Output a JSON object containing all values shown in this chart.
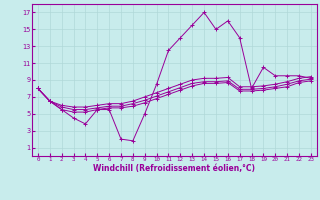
{
  "xlabel": "Windchill (Refroidissement éolien,°C)",
  "bg_color": "#c8ecec",
  "line_color": "#990099",
  "grid_color": "#b0d8d8",
  "xlim": [
    -0.5,
    23.5
  ],
  "ylim": [
    0,
    18
  ],
  "xticks": [
    0,
    1,
    2,
    3,
    4,
    5,
    6,
    7,
    8,
    9,
    10,
    11,
    12,
    13,
    14,
    15,
    16,
    17,
    18,
    19,
    20,
    21,
    22,
    23
  ],
  "yticks": [
    1,
    3,
    5,
    7,
    9,
    11,
    13,
    15,
    17
  ],
  "series1_x": [
    0,
    1,
    2,
    3,
    4,
    5,
    6,
    7,
    8,
    9,
    10,
    11,
    12,
    13,
    14,
    15,
    16,
    17,
    18,
    19,
    20,
    21,
    22,
    23
  ],
  "series1_y": [
    8.0,
    6.5,
    5.5,
    4.5,
    3.8,
    5.5,
    5.5,
    2.0,
    1.8,
    5.0,
    8.5,
    12.5,
    14.0,
    15.5,
    17.0,
    15.0,
    16.0,
    14.0,
    8.0,
    10.5,
    9.5,
    9.5,
    9.5,
    9.2
  ],
  "series2_x": [
    0,
    1,
    2,
    3,
    4,
    5,
    6,
    7,
    8,
    9,
    10,
    11,
    12,
    13,
    14,
    15,
    16,
    17,
    18,
    19,
    20,
    21,
    22,
    23
  ],
  "series2_y": [
    8.0,
    6.5,
    6.0,
    5.8,
    5.8,
    6.0,
    6.2,
    6.2,
    6.5,
    7.0,
    7.5,
    8.0,
    8.5,
    9.0,
    9.2,
    9.2,
    9.3,
    8.2,
    8.2,
    8.3,
    8.5,
    8.8,
    9.2,
    9.4
  ],
  "series3_x": [
    0,
    1,
    2,
    3,
    4,
    5,
    6,
    7,
    8,
    9,
    10,
    11,
    12,
    13,
    14,
    15,
    16,
    17,
    18,
    19,
    20,
    21,
    22,
    23
  ],
  "series3_y": [
    8.0,
    6.5,
    5.8,
    5.5,
    5.5,
    5.7,
    5.9,
    5.9,
    6.2,
    6.6,
    7.1,
    7.6,
    8.1,
    8.6,
    8.8,
    8.8,
    8.9,
    7.9,
    7.9,
    8.0,
    8.2,
    8.5,
    8.9,
    9.1
  ],
  "series4_x": [
    0,
    1,
    2,
    3,
    4,
    5,
    6,
    7,
    8,
    9,
    10,
    11,
    12,
    13,
    14,
    15,
    16,
    17,
    18,
    19,
    20,
    21,
    22,
    23
  ],
  "series4_y": [
    8.0,
    6.5,
    5.5,
    5.2,
    5.2,
    5.5,
    5.7,
    5.7,
    5.9,
    6.3,
    6.8,
    7.3,
    7.8,
    8.3,
    8.6,
    8.6,
    8.7,
    7.7,
    7.7,
    7.8,
    8.0,
    8.2,
    8.7,
    8.9
  ]
}
